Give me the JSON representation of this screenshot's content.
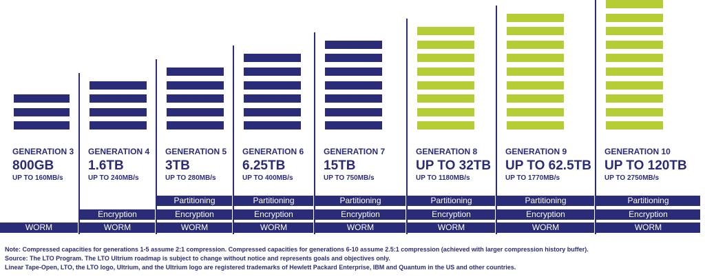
{
  "chart_data": {
    "type": "bar",
    "categories": [
      "GENERATION 3",
      "GENERATION 4",
      "GENERATION 5",
      "GENERATION 6",
      "GENERATION 7",
      "GENERATION 8",
      "GENERATION 9",
      "GENERATION 10"
    ],
    "capacity_labels": [
      "800GB",
      "1.6TB",
      "3TB",
      "6.25TB",
      "15TB",
      "UP TO 32TB",
      "UP TO 62.5TB",
      "UP TO 120TB"
    ],
    "speed_labels": [
      "UP TO 160MB/s",
      "UP TO 240MB/s",
      "UP TO 280MB/s",
      "UP TO 400MB/s",
      "UP TO 750MB/s",
      "UP TO 1180MB/s",
      "UP TO 1770MB/s",
      "UP TO 2750MB/s"
    ],
    "series": [
      {
        "values": [
          3,
          4,
          5,
          6,
          7,
          8,
          9,
          10
        ]
      }
    ],
    "colors": {
      "navy": "#2a2c78",
      "lime": "#b5cc34"
    },
    "features": [
      {
        "label": "Partitioning",
        "from_index": 2
      },
      {
        "label": "Encryption",
        "from_index": 1
      },
      {
        "label": "WORM",
        "from_index": 0
      }
    ]
  },
  "notes": [
    "Note:  Compressed capacities for generations 1-5 assume 2:1 compression. Compressed capacities for generations 6-10 assume 2.5:1 compression (achieved with larger compression history buffer).",
    "Source:  The LTO Program. The LTO Ultrium roadmap is subject to change without notice and represents goals and objectives only.",
    "Linear Tape-Open, LTO, the LTO logo, Ultrium, and the Ultrium logo are registered trademarks of Hewlett Packard Enterprise, IBM and Quantum in the US and other countries."
  ]
}
